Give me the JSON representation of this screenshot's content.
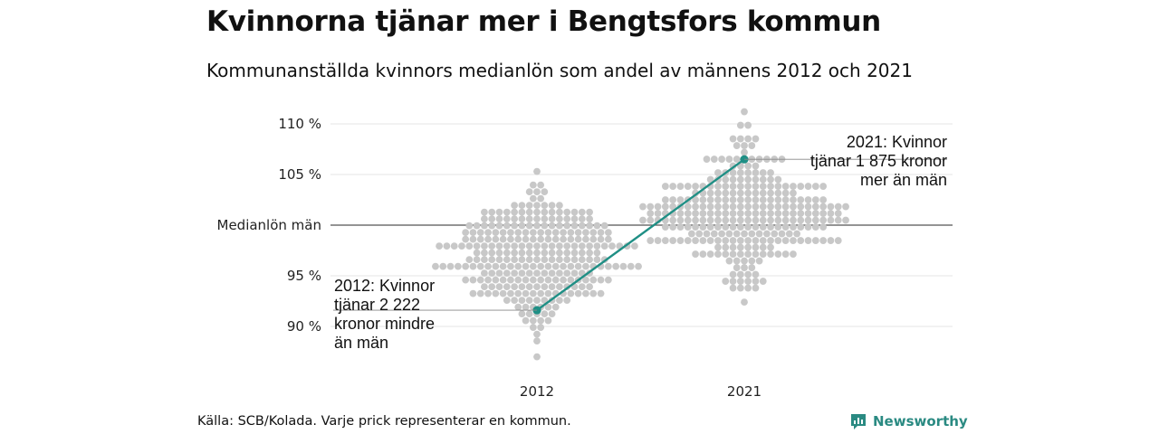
{
  "header": {
    "title": "Kvinnorna tjänar mer i Bengtsfors kommun",
    "subtitle": "Kommunanställda kvinnors medianlön som andel av männens 2012 och 2021"
  },
  "footer": {
    "source": "Källa: SCB/Kolada. Varje prick representerar en kommun.",
    "brand": "Newsworthy"
  },
  "colors": {
    "dots": "#c8c8c8",
    "highlight": "#1f8f85",
    "grid": "#e4e4e4",
    "reference": "#555555",
    "brand": "#2a8a82"
  },
  "chart_data": {
    "type": "beeswarm",
    "y_unit": "% of men's median salary",
    "ylim": [
      86,
      112
    ],
    "yticks": [
      {
        "value": 110,
        "label": "110 %"
      },
      {
        "value": 105,
        "label": "105 %"
      },
      {
        "value": 100,
        "label": "Medianlön män"
      },
      {
        "value": 95,
        "label": "95 %"
      },
      {
        "value": 90,
        "label": "90 %"
      }
    ],
    "categories": [
      "2012",
      "2021"
    ],
    "distributions": [
      {
        "category": "2012",
        "min": 87.0,
        "max": 105.3,
        "center": 96.8,
        "spread": 3.2
      },
      {
        "category": "2021",
        "min": 92.4,
        "max": 111.2,
        "center": 101.3,
        "spread": 3.1
      }
    ],
    "highlight_series": {
      "points": [
        {
          "x": "2012",
          "y": 91.6
        },
        {
          "x": "2021",
          "y": 106.5
        }
      ]
    },
    "annotations": [
      {
        "category": "2012",
        "lines": [
          "2012: Kvinnor",
          "tjänar 2 222",
          "kronor mindre",
          "än män"
        ]
      },
      {
        "category": "2021",
        "lines": [
          "2021: Kvinnor",
          "tjänar 1 875 kronor",
          "mer än män"
        ]
      }
    ]
  }
}
